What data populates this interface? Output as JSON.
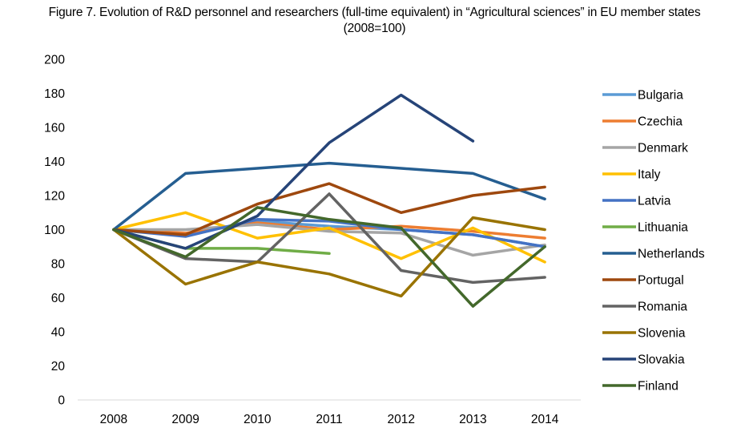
{
  "chart_data": {
    "type": "line",
    "title": "Figure 7. Evolution of R&D personnel and researchers (full-time equivalent) in “Agricultural sciences” in EU member states",
    "subtitle": "(2008=100)",
    "xlabel": "",
    "ylabel": "",
    "categories": [
      "2008",
      "2009",
      "2010",
      "2011",
      "2012",
      "2013",
      "2014"
    ],
    "ylim": [
      0,
      200
    ],
    "yticks": [
      0,
      20,
      40,
      60,
      80,
      100,
      120,
      140,
      160,
      180,
      200
    ],
    "grid": false,
    "legend_position": "right",
    "series": [
      {
        "name": "Bulgaria",
        "color": "#5b9bd5",
        "values": [
          100,
          97,
          105,
          102,
          100,
          97,
          90
        ]
      },
      {
        "name": "Czechia",
        "color": "#ed7d31",
        "values": [
          100,
          98,
          104,
          100,
          102,
          99,
          95
        ]
      },
      {
        "name": "Denmark",
        "color": "#a5a5a5",
        "values": [
          100,
          100,
          103,
          99,
          98,
          85,
          91
        ]
      },
      {
        "name": "Italy",
        "color": "#ffc000",
        "values": [
          100,
          110,
          95,
          101,
          83,
          101,
          81
        ]
      },
      {
        "name": "Latvia",
        "color": "#4472c4",
        "values": [
          100,
          96,
          106,
          105,
          100,
          97,
          90
        ]
      },
      {
        "name": "Lithuania",
        "color": "#70ad47",
        "values": [
          100,
          89,
          89,
          86,
          null,
          null,
          null
        ]
      },
      {
        "name": "Netherlands",
        "color": "#255e91",
        "values": [
          100,
          133,
          136,
          139,
          136,
          133,
          118
        ]
      },
      {
        "name": "Portugal",
        "color": "#9e480e",
        "values": [
          100,
          97,
          115,
          127,
          110,
          120,
          125
        ]
      },
      {
        "name": "Romania",
        "color": "#636363",
        "values": [
          100,
          83,
          81,
          121,
          76,
          69,
          72
        ]
      },
      {
        "name": "Slovenia",
        "color": "#997300",
        "values": [
          100,
          68,
          81,
          74,
          61,
          107,
          100
        ]
      },
      {
        "name": "Slovakia",
        "color": "#264478",
        "values": [
          100,
          89,
          108,
          151,
          179,
          152,
          null
        ]
      },
      {
        "name": "Finland",
        "color": "#43682b",
        "values": [
          100,
          84,
          113,
          106,
          101,
          55,
          90
        ]
      }
    ]
  }
}
